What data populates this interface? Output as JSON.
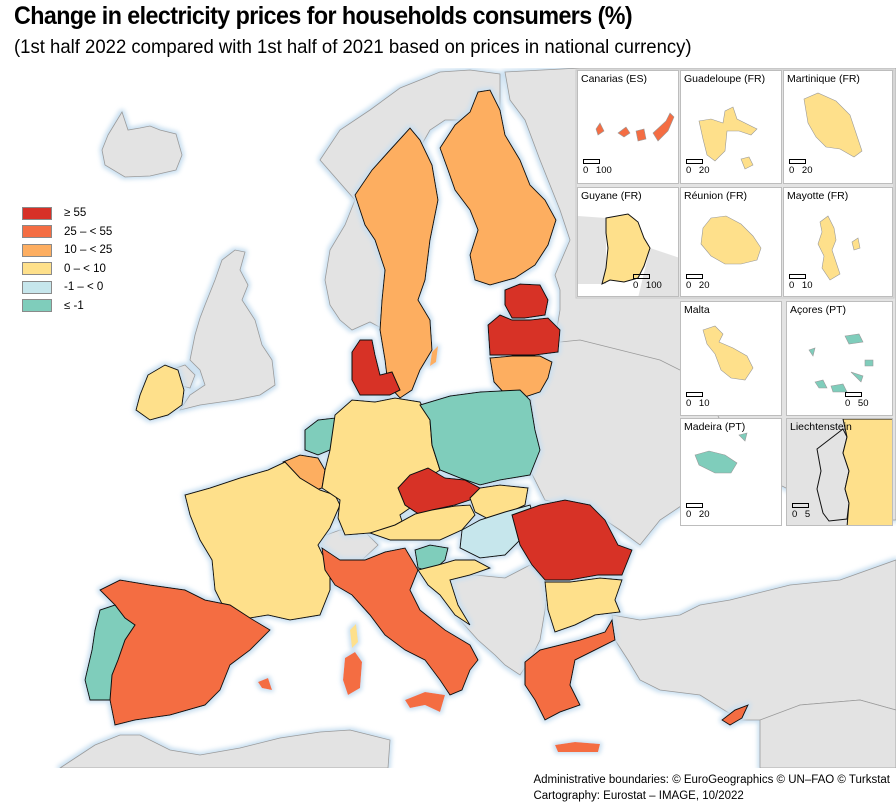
{
  "header": {
    "title": "Change in electricity prices for households consumers (%)",
    "subtitle": "(1st half 2022 compared with 1st half of 2021 based on prices in national currency)"
  },
  "legend": {
    "classes": [
      {
        "label": "≥ 55",
        "color": "#d73027"
      },
      {
        "label": "25 – < 55",
        "color": "#f46d43"
      },
      {
        "label": "10 – < 25",
        "color": "#fdae61"
      },
      {
        "label": "0 – < 10",
        "color": "#fee08b"
      },
      {
        "label": "-1 – < 0",
        "color": "#c6e6ec"
      },
      {
        "label": "≤ -1",
        "color": "#7fcdbb"
      }
    ],
    "no_data_color": "#e3e3e3"
  },
  "countries": [
    {
      "name": "Estonia",
      "class": "≥ 55"
    },
    {
      "name": "Latvia",
      "class": "≥ 55"
    },
    {
      "name": "Denmark",
      "class": "≥ 55"
    },
    {
      "name": "Czechia",
      "class": "≥ 55"
    },
    {
      "name": "Romania",
      "class": "≥ 55"
    },
    {
      "name": "Spain",
      "class": "25 – < 55"
    },
    {
      "name": "Italy",
      "class": "25 – < 55"
    },
    {
      "name": "Greece",
      "class": "25 – < 55"
    },
    {
      "name": "Cyprus",
      "class": "25 – < 55"
    },
    {
      "name": "Sweden",
      "class": "10 – < 25"
    },
    {
      "name": "Finland",
      "class": "10 – < 25"
    },
    {
      "name": "Lithuania",
      "class": "10 – < 25"
    },
    {
      "name": "Belgium",
      "class": "10 – < 25"
    },
    {
      "name": "Ireland",
      "class": "0 – < 10"
    },
    {
      "name": "France",
      "class": "0 – < 10"
    },
    {
      "name": "Germany",
      "class": "0 – < 10"
    },
    {
      "name": "Austria",
      "class": "0 – < 10"
    },
    {
      "name": "Slovakia",
      "class": "0 – < 10"
    },
    {
      "name": "Croatia",
      "class": "0 – < 10"
    },
    {
      "name": "Bulgaria",
      "class": "0 – < 10"
    },
    {
      "name": "Hungary",
      "class": "-1 – < 0"
    },
    {
      "name": "Netherlands",
      "class": "≤ -1"
    },
    {
      "name": "Poland",
      "class": "≤ -1"
    },
    {
      "name": "Slovenia",
      "class": "≤ -1"
    },
    {
      "name": "Portugal",
      "class": "≤ -1"
    }
  ],
  "insets": [
    {
      "label": "Canarias (ES)",
      "class": "25 – < 55",
      "scale": "0 100"
    },
    {
      "label": "Guadeloupe (FR)",
      "class": "0 – < 10",
      "scale": "0 20"
    },
    {
      "label": "Martinique (FR)",
      "class": "0 – < 10",
      "scale": "0 20"
    },
    {
      "label": "Guyane (FR)",
      "class": "0 – < 10",
      "scale": "0 100"
    },
    {
      "label": "Réunion (FR)",
      "class": "0 – < 10",
      "scale": "0 20"
    },
    {
      "label": "Mayotte (FR)",
      "class": "0 – < 10",
      "scale": "0 10"
    },
    {
      "label": "Malta",
      "class": "0 – < 10",
      "scale": "0 10"
    },
    {
      "label": "Açores (PT)",
      "class": "≤ -1",
      "scale": "0 50"
    },
    {
      "label": "Madeira (PT)",
      "class": "≤ -1",
      "scale": "0 20"
    },
    {
      "label": "Liechtenstein",
      "class": "0 – < 10",
      "scale": "0 5"
    }
  ],
  "credits": {
    "line1": "Administrative boundaries: © EuroGeographics © UN–FAO © Turkstat",
    "line2": "Cartography: Eurostat – IMAGE, 10/2022"
  }
}
